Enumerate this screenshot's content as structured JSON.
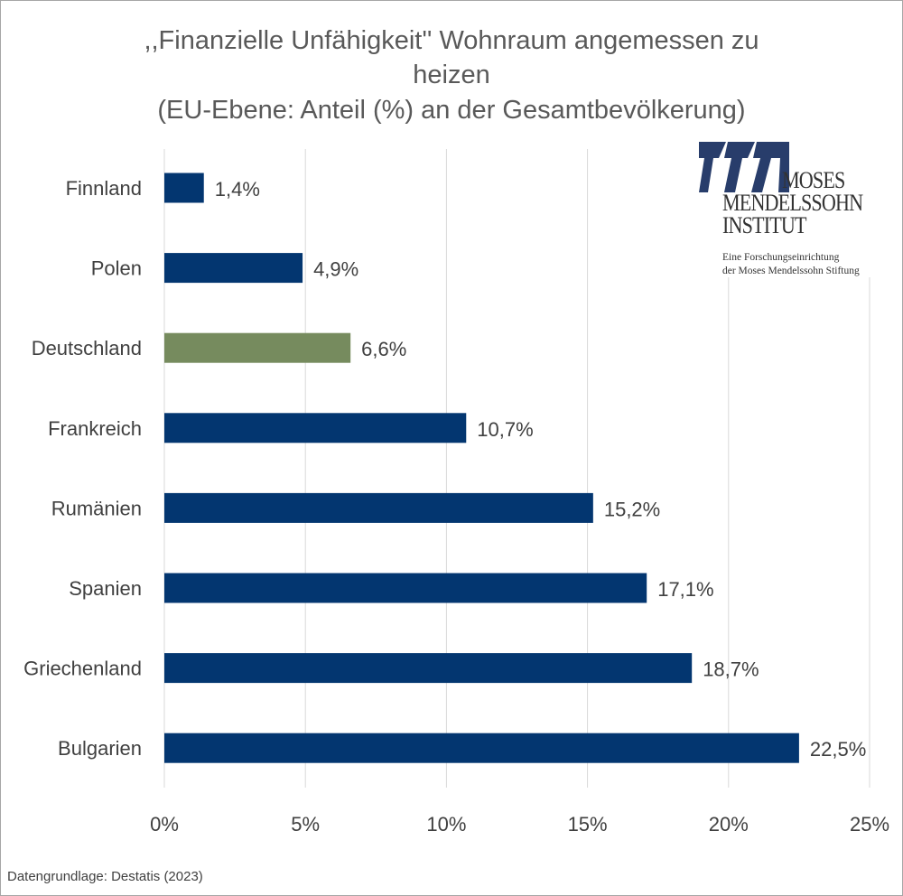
{
  "chart_data": {
    "type": "bar",
    "orientation": "horizontal",
    "title": ",,Finanzielle Unfähigkeit'' Wohnraum angemessen zu heizen",
    "title_lines": [
      ",,Finanzielle Unfähigkeit'' Wohnraum angemessen zu",
      "heizen",
      "(EU-Ebene: Anteil (%) an der Gesamtbevölkerung)"
    ],
    "categories": [
      "Finnland",
      "Polen",
      "Deutschland",
      "Frankreich",
      "Rumänien",
      "Spanien",
      "Griechenland",
      "Bulgarien"
    ],
    "values": [
      1.4,
      4.9,
      6.6,
      10.7,
      15.2,
      17.1,
      18.7,
      22.5
    ],
    "data_labels": [
      "1,4%",
      "4,9%",
      "6,6%",
      "10,7%",
      "15,2%",
      "17,1%",
      "18,7%",
      "22,5%"
    ],
    "highlight": "Deutschland",
    "colors": {
      "default": "#033670",
      "highlight": "#768b5e",
      "grid": "#d9d9d9",
      "text": "#404040"
    },
    "xlim": [
      0,
      25
    ],
    "xticks": [
      0,
      5,
      10,
      15,
      20,
      25
    ],
    "xtick_labels": [
      "0%",
      "5%",
      "10%",
      "15%",
      "20%",
      "25%"
    ],
    "grid": true,
    "xlabel": "",
    "ylabel": ""
  },
  "logo": {
    "line1": "MOSES",
    "line2": "MENDELSSOHN",
    "line3": "INSTITUT",
    "sub1": "Eine Forschungseinrichtung",
    "sub2": "der Moses Mendelssohn Stiftung"
  },
  "source": "Datengrundlage: Destatis (2023)"
}
